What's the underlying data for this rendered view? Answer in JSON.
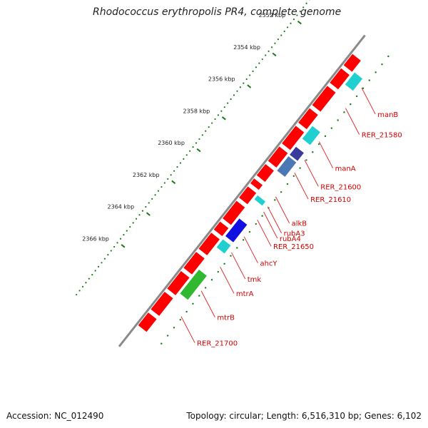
{
  "title": "Rhodococcus erythropolis PR4, complete genome",
  "footer": {
    "accession": "Accession: NC_012490",
    "summary": "Topology: circular; Length: 6,516,310 bp; Genes: 6,102"
  },
  "colors": {
    "backbone": "#8a8a8a",
    "forward_gene": "#ff0000",
    "label": "#d40000",
    "leader_line": "#e03030",
    "tick": "#1a7a1a",
    "cyan_gene": "#20d0d0",
    "blue_gene": "#1010e0",
    "purple_gene": "#3a3a9a",
    "steelblue_gene": "#4a78b4",
    "green_gene": "#30b830"
  },
  "ticks": [
    {
      "kbp": 2352,
      "label": "2352 kbp"
    },
    {
      "kbp": 2354,
      "label": "2354 kbp"
    },
    {
      "kbp": 2356,
      "label": "2356 kbp"
    },
    {
      "kbp": 2358,
      "label": "2358 kbp"
    },
    {
      "kbp": 2360,
      "label": "2360 kbp"
    },
    {
      "kbp": 2362,
      "label": "2362 kbp"
    },
    {
      "kbp": 2364,
      "label": "2364 kbp"
    },
    {
      "kbp": 2366,
      "label": "2366 kbp"
    }
  ],
  "genes": [
    {
      "label": "manB",
      "ring": "inner",
      "color": "cyan",
      "start_kbp": 2352.25,
      "end_kbp": 2353.0
    },
    {
      "label": "RER_21580",
      "ring": "inner",
      "color": "none",
      "start_kbp": 2353.6,
      "end_kbp": 2354.2
    },
    {
      "label": "manA",
      "ring": "inner",
      "color": "cyan",
      "start_kbp": 2355.6,
      "end_kbp": 2356.4
    },
    {
      "label": "RER_21600",
      "ring": "inner",
      "color": "purple",
      "start_kbp": 2356.9,
      "end_kbp": 2357.4
    },
    {
      "label": "RER_21610",
      "ring": "inner",
      "color": "steelblue",
      "start_kbp": 2357.5,
      "end_kbp": 2358.4
    },
    {
      "label": "alkB",
      "ring": "inner",
      "color": "none",
      "start_kbp": 2359.3,
      "end_kbp": 2359.6
    },
    {
      "label": "rubA3",
      "ring": "inner",
      "color": "cyan",
      "start_kbp": 2359.95,
      "end_kbp": 2360.2
    },
    {
      "label": "rubA4",
      "ring": "inner",
      "color": "none",
      "start_kbp": 2360.3,
      "end_kbp": 2360.5
    },
    {
      "label": "RER_21650",
      "ring": "inner",
      "color": "none",
      "start_kbp": 2360.7,
      "end_kbp": 2361.1
    },
    {
      "label": "ahcY",
      "ring": "inner",
      "color": "blue",
      "start_kbp": 2361.4,
      "end_kbp": 2362.5
    },
    {
      "label": "tmk",
      "ring": "inner",
      "color": "cyan",
      "start_kbp": 2362.7,
      "end_kbp": 2363.2
    },
    {
      "label": "mtrA",
      "ring": "inner",
      "color": "none",
      "start_kbp": 2363.5,
      "end_kbp": 2364.2
    },
    {
      "label": "mtrB",
      "ring": "inner",
      "color": "green",
      "start_kbp": 2364.6,
      "end_kbp": 2366.1
    },
    {
      "label": "RER_21700",
      "ring": "inner",
      "color": "none",
      "start_kbp": 2366.6,
      "end_kbp": 2367.3
    }
  ]
}
